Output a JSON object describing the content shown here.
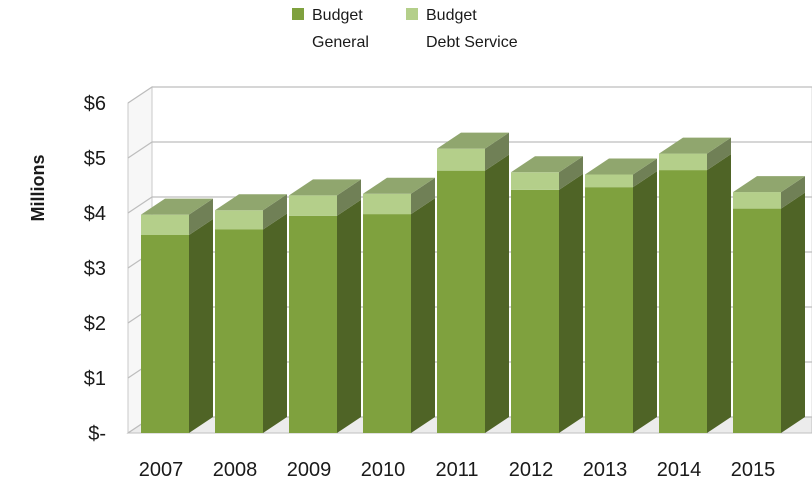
{
  "chart_data": {
    "type": "bar",
    "stacked": true,
    "three_d": true,
    "categories": [
      "2007",
      "2008",
      "2009",
      "2010",
      "2011",
      "2012",
      "2013",
      "2014",
      "2015"
    ],
    "series": [
      {
        "name": "Budget General",
        "legend_lines": [
          "Budget",
          "General"
        ],
        "color": "#7fa13e",
        "values": [
          3.6,
          3.7,
          3.95,
          3.98,
          4.77,
          4.42,
          4.47,
          4.78,
          4.08
        ]
      },
      {
        "name": "Budget Debt Service",
        "legend_lines": [
          "Budget",
          "Debt Service"
        ],
        "color": "#b4cf8a",
        "values": [
          0.37,
          0.35,
          0.37,
          0.37,
          0.4,
          0.32,
          0.23,
          0.3,
          0.3
        ]
      }
    ],
    "ylabel": "Millions",
    "ylim": [
      0,
      6
    ],
    "y_ticks": [
      0,
      1,
      2,
      3,
      4,
      5,
      6
    ],
    "y_tick_labels": [
      "$-",
      "$1",
      "$2",
      "$3",
      "$4",
      "$5",
      "$6"
    ],
    "grid": true,
    "legend_position": "top"
  }
}
